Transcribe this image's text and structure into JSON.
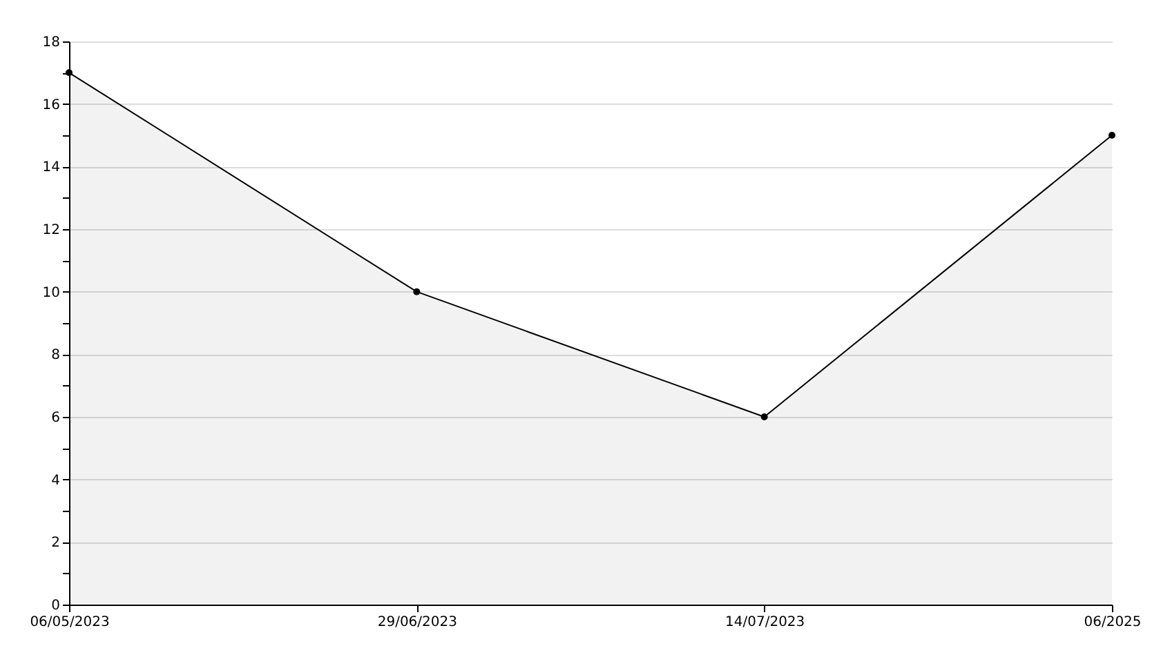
{
  "chart_data": {
    "type": "area",
    "categories": [
      "06/05/2023",
      "29/06/2023",
      "14/07/2023",
      "06/2025"
    ],
    "series": [
      {
        "color": "#000000",
        "values": [
          17,
          10,
          6,
          15
        ]
      }
    ],
    "ylim": [
      0,
      18
    ],
    "yticks": [
      0,
      {
        "value": 1,
        "label": null
      },
      2,
      {
        "value": 3,
        "label": null
      },
      4,
      {
        "value": 5,
        "label": null
      },
      6,
      {
        "value": 7,
        "label": null
      },
      8,
      {
        "value": 9,
        "label": null
      },
      10,
      {
        "value": 11,
        "label": null
      },
      12,
      {
        "value": 13,
        "label": null
      },
      14,
      {
        "value": 15,
        "label": null
      },
      16,
      {
        "value": 17,
        "label": null
      },
      18
    ],
    "grid": "y",
    "marker": "circle",
    "legend": false
  }
}
